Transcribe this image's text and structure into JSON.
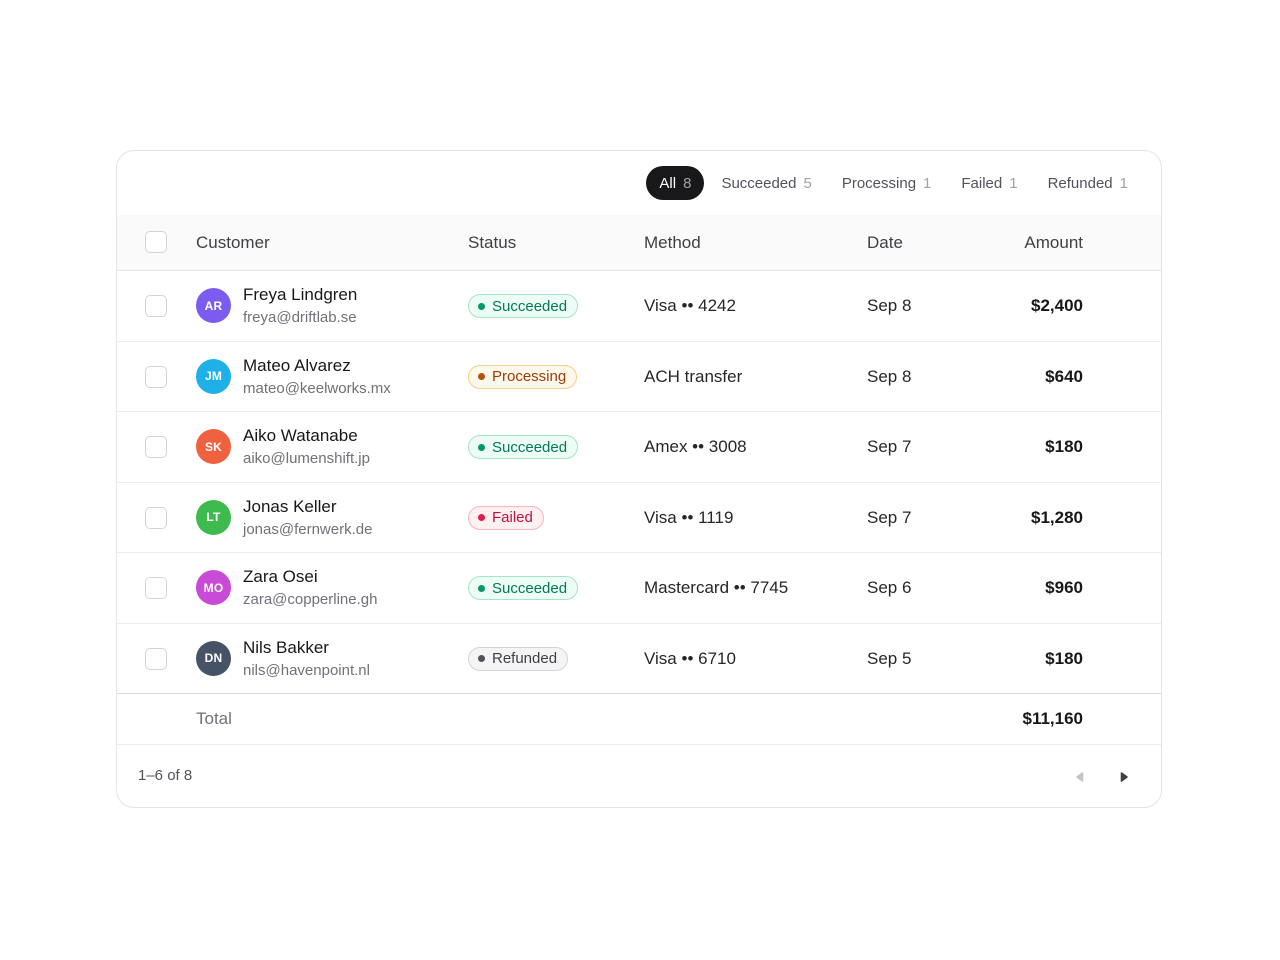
{
  "filters": [
    {
      "label": "All",
      "count": "8",
      "active": true
    },
    {
      "label": "Succeeded",
      "count": "5",
      "active": false
    },
    {
      "label": "Processing",
      "count": "1",
      "active": false
    },
    {
      "label": "Failed",
      "count": "1",
      "active": false
    },
    {
      "label": "Refunded",
      "count": "1",
      "active": false
    }
  ],
  "table": {
    "columns": {
      "customer": "Customer",
      "status": "Status",
      "method": "Method",
      "date": "Date",
      "amount": "Amount"
    },
    "rows": [
      {
        "initials": "AR",
        "avatar_color": "#7c5cf0",
        "name": "Freya Lindgren",
        "email": "freya@driftlab.se",
        "status": "Succeeded",
        "method": "Visa •• 4242",
        "date": "Sep 8",
        "amount": "$2,400"
      },
      {
        "initials": "JM",
        "avatar_color": "#1fb0e8",
        "name": "Mateo Alvarez",
        "email": "mateo@keelworks.mx",
        "status": "Processing",
        "method": "ACH transfer",
        "date": "Sep 8",
        "amount": "$640"
      },
      {
        "initials": "SK",
        "avatar_color": "#f0613f",
        "name": "Aiko Watanabe",
        "email": "aiko@lumenshift.jp",
        "status": "Succeeded",
        "method": "Amex •• 3008",
        "date": "Sep 7",
        "amount": "$180"
      },
      {
        "initials": "LT",
        "avatar_color": "#3dbb4f",
        "name": "Jonas Keller",
        "email": "jonas@fernwerk.de",
        "status": "Failed",
        "method": "Visa •• 1119",
        "date": "Sep 7",
        "amount": "$1,280"
      },
      {
        "initials": "MO",
        "avatar_color": "#c84ad6",
        "name": "Zara Osei",
        "email": "zara@copperline.gh",
        "status": "Succeeded",
        "method": "Mastercard •• 7745",
        "date": "Sep 6",
        "amount": "$960"
      },
      {
        "initials": "DN",
        "avatar_color": "#465266",
        "name": "Nils Bakker",
        "email": "nils@havenpoint.nl",
        "status": "Refunded",
        "method": "Visa •• 6710",
        "date": "Sep 5",
        "amount": "$180"
      }
    ],
    "total_label": "Total",
    "total_value": "$11,160"
  },
  "status_styles": {
    "Succeeded": {
      "bg": "#ecfdf5",
      "border": "#a7e3c6",
      "text": "#047857",
      "dot": "#059669"
    },
    "Processing": {
      "bg": "#fff8eb",
      "border": "#f5cf86",
      "text": "#9a3d0a",
      "dot": "#b45309"
    },
    "Failed": {
      "bg": "#fff1f2",
      "border": "#f8b4c0",
      "text": "#be123c",
      "dot": "#e11d48"
    },
    "Refunded": {
      "bg": "#f4f4f5",
      "border": "#d4d4d8",
      "text": "#3f3f46",
      "dot": "#52525b"
    }
  },
  "pagination": {
    "range_text": "1–6 of 8",
    "prev_icon": "chevron-left-icon",
    "next_icon": "chevron-right-icon"
  }
}
